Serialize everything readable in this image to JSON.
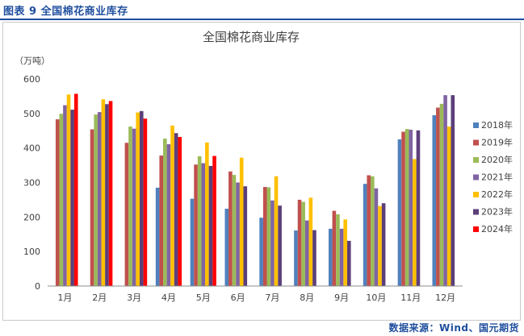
{
  "figure_label": "图表 9  全国棉花商业库存",
  "source": "数据来源：Wind、国元期货",
  "colors": {
    "accent": "#1f4e9e",
    "s2018": "#4f81bd",
    "s2019": "#c0504d",
    "s2020": "#9bbb59",
    "s2021": "#8064a2",
    "s2022": "#ffc000",
    "s2023": "#5b3f7a",
    "s2024": "#ff0000"
  },
  "chart_data": {
    "type": "bar",
    "title": "全国棉花商业库存",
    "ylabel": "（万吨）",
    "ylim": [
      0,
      600
    ],
    "yticks": [
      0,
      100,
      200,
      300,
      400,
      500,
      600
    ],
    "categories": [
      "1月",
      "2月",
      "3月",
      "4月",
      "5月",
      "6月",
      "7月",
      "8月",
      "9月",
      "10月",
      "11月",
      "12月"
    ],
    "legend_position": "right",
    "grid": false,
    "series": [
      {
        "name": "2018年",
        "color": "#4f81bd",
        "values": [
          null,
          null,
          null,
          285,
          253,
          224,
          198,
          161,
          166,
          296,
          425,
          495
        ]
      },
      {
        "name": "2019年",
        "color": "#c0504d",
        "values": [
          483,
          454,
          415,
          378,
          352,
          332,
          287,
          250,
          218,
          321,
          447,
          517
        ]
      },
      {
        "name": "2020年",
        "color": "#9bbb59",
        "values": [
          499,
          497,
          462,
          427,
          376,
          322,
          286,
          244,
          208,
          318,
          455,
          528
        ]
      },
      {
        "name": "2021年",
        "color": "#8064a2",
        "values": [
          524,
          504,
          456,
          411,
          356,
          300,
          248,
          190,
          166,
          283,
          453,
          553
        ]
      },
      {
        "name": "2022年",
        "color": "#ffc000",
        "values": [
          555,
          541,
          503,
          465,
          416,
          372,
          318,
          256,
          193,
          232,
          368,
          462
        ]
      },
      {
        "name": "2023年",
        "color": "#5b3f7a",
        "values": [
          511,
          527,
          507,
          443,
          348,
          289,
          233,
          162,
          131,
          240,
          451,
          553
        ]
      },
      {
        "name": "2024年",
        "color": "#ff0000",
        "values": [
          557,
          536,
          485,
          432,
          377,
          null,
          null,
          null,
          null,
          null,
          null,
          null
        ]
      }
    ]
  }
}
